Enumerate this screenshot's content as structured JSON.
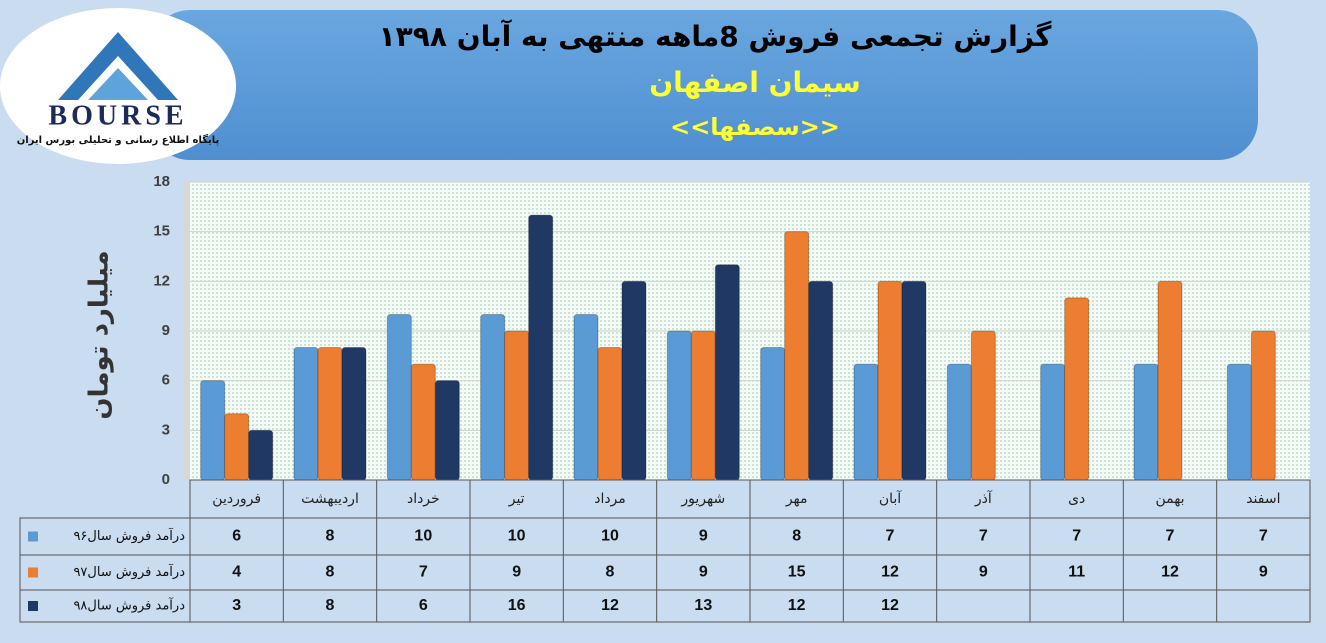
{
  "logo": {
    "text": "BOURSE",
    "tagline": "پایگاه اطلاع رسانی و تحلیلی بورس ایران"
  },
  "chart_data": {
    "type": "bar",
    "title": "گزارش تجمعی فروش  8ماهه منتهی به آبان ۱۳۹۸",
    "subtitle": "سیمان اصفهان",
    "symbol": "<<سصفها>>",
    "y_label": "میلیارد تومان",
    "categories": [
      "فروردین",
      "اردیبهشت",
      "خرداد",
      "تیر",
      "مرداد",
      "شهریور",
      "مهر",
      "آبان",
      "آذر",
      "دی",
      "بهمن",
      "اسفند"
    ],
    "series": [
      {
        "name": "درآمد فروش سال۹۶",
        "color": "#5b9bd5",
        "values": [
          6,
          8,
          10,
          10,
          10,
          9,
          8,
          7,
          7,
          7,
          7,
          7
        ]
      },
      {
        "name": "درآمد فروش سال۹۷",
        "color": "#ed7d31",
        "values": [
          4,
          8,
          7,
          9,
          8,
          9,
          15,
          12,
          9,
          11,
          12,
          9
        ]
      },
      {
        "name": "درآمد فروش سال۹۸",
        "color": "#203864",
        "values": [
          3,
          8,
          6,
          16,
          12,
          13,
          12,
          12,
          null,
          null,
          null,
          null
        ]
      }
    ],
    "ylim": [
      0,
      18
    ],
    "yticks": [
      0,
      3,
      6,
      9,
      12,
      15,
      18
    ],
    "grid": true,
    "data_table": true
  }
}
